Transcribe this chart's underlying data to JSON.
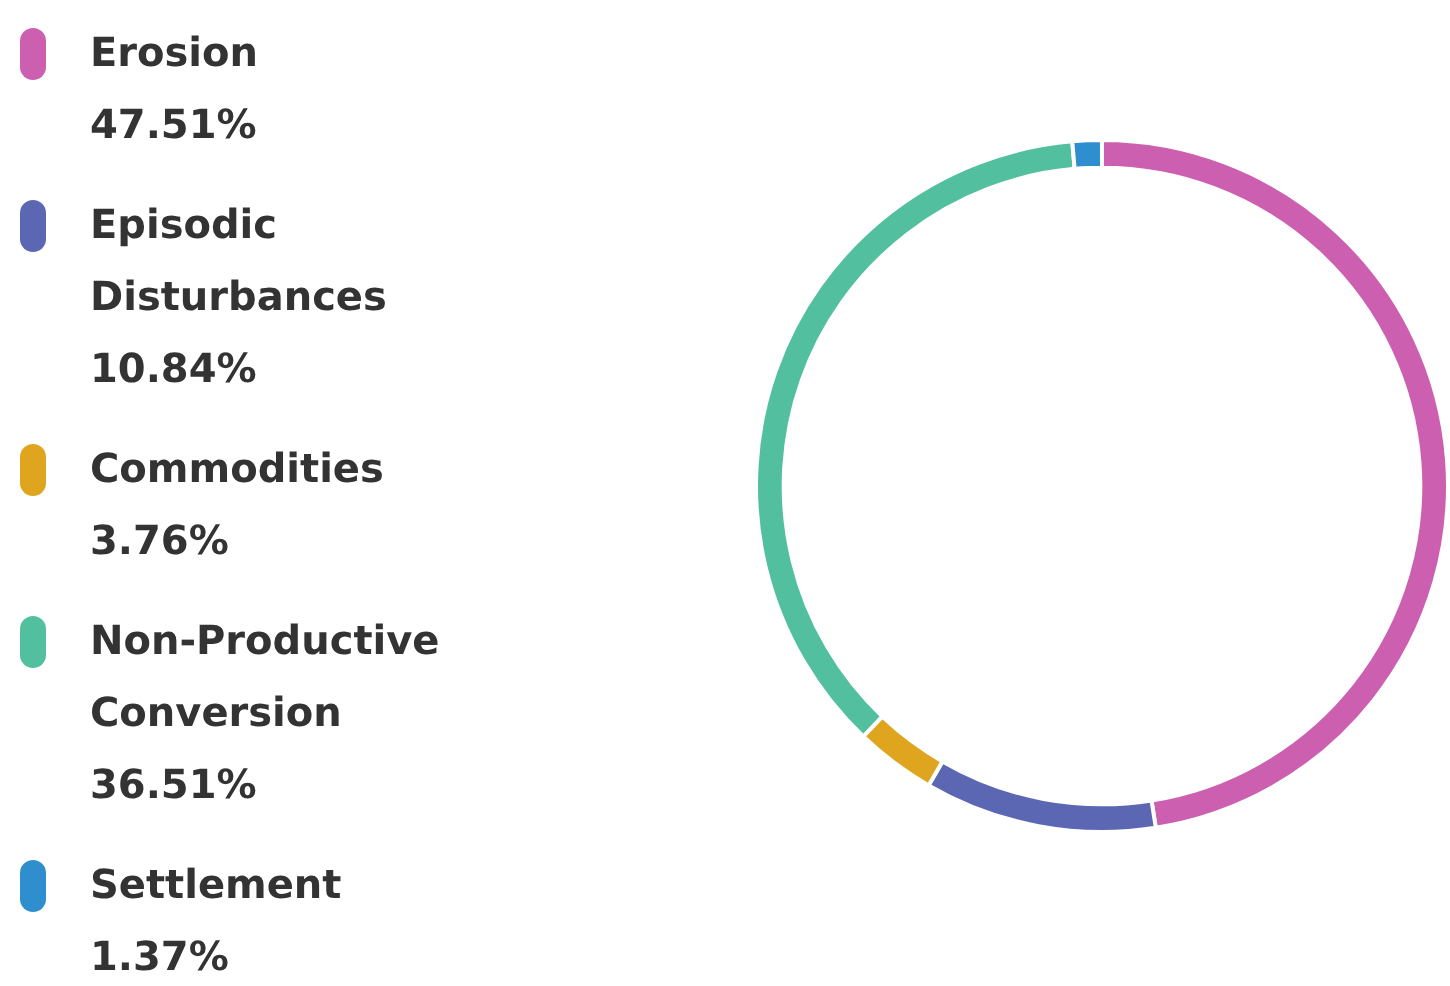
{
  "chart_data": {
    "type": "donut",
    "categories": [
      "Erosion",
      "Episodic Disturbances",
      "Commodities",
      "Non-Productive Conversion",
      "Settlement"
    ],
    "values": [
      47.51,
      10.84,
      3.76,
      36.51,
      1.37
    ],
    "value_labels": [
      "47.51%",
      "10.84%",
      "3.76%",
      "36.51%",
      "1.37%"
    ],
    "colors": [
      "#cc5fb0",
      "#5b67b3",
      "#e0a51f",
      "#52bf9f",
      "#2f8fce"
    ],
    "legend": "left"
  }
}
